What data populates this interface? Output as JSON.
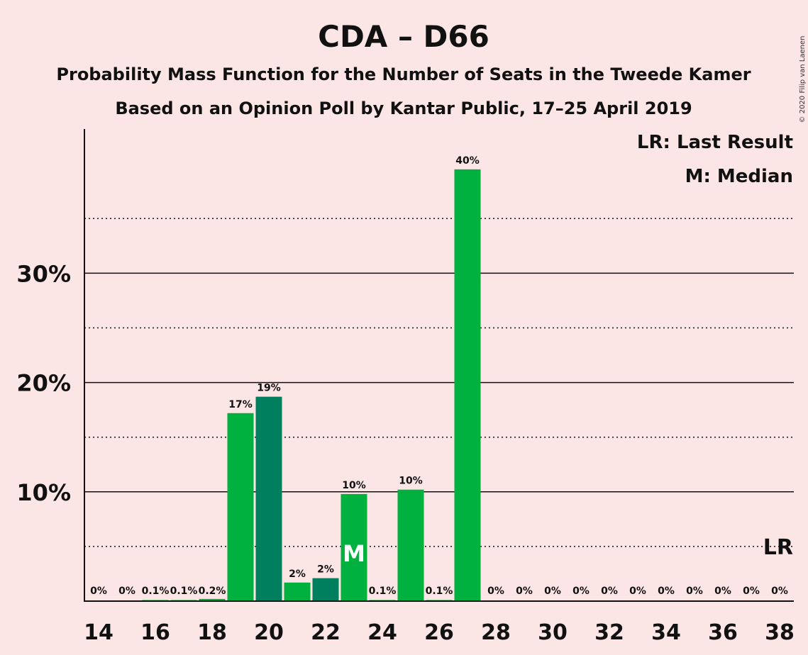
{
  "colors": {
    "background": "#fce5e5",
    "bar": "#00b140",
    "bar_alt": "#007f5f",
    "axis": "#111111"
  },
  "chart_data": {
    "type": "bar",
    "title": "CDA – D66",
    "subtitle_lines": [
      "Probability Mass Function for the Number of Seats in the Tweede Kamer",
      "Based on an Opinion Poll by Kantar Public, 17–25 April 2019"
    ],
    "copyright": "© 2020 Filip van Laenen",
    "legend": [
      {
        "key": "LR",
        "text": "LR: Last Result"
      },
      {
        "key": "M",
        "text": "M: Median"
      }
    ],
    "legend_placement": "top-right",
    "x": [
      14,
      15,
      16,
      17,
      18,
      19,
      20,
      21,
      22,
      23,
      24,
      25,
      26,
      27,
      28,
      29,
      30,
      31,
      32,
      33,
      34,
      35,
      36,
      37,
      38
    ],
    "values": [
      0,
      0,
      0.1,
      0.1,
      0.2,
      17.2,
      18.7,
      1.7,
      2.1,
      9.8,
      0.1,
      10.2,
      0.1,
      39.5,
      0,
      0,
      0,
      0,
      0,
      0,
      0,
      0,
      0,
      0,
      0
    ],
    "data_labels": [
      "0%",
      "0%",
      "0.1%",
      "0.1%",
      "0.2%",
      "17%",
      "19%",
      "2%",
      "2%",
      "10%",
      "0.1%",
      "10%",
      "0.1%",
      "40%",
      "0%",
      "0%",
      "0%",
      "0%",
      "0%",
      "0%",
      "0%",
      "0%",
      "0%",
      "0%",
      "0%"
    ],
    "bar_colors": [
      "bar",
      "bar",
      "bar",
      "bar",
      "bar",
      "bar",
      "bar_alt",
      "bar",
      "bar_alt",
      "bar",
      "bar",
      "bar",
      "bar",
      "bar",
      "bar",
      "bar",
      "bar",
      "bar",
      "bar",
      "bar",
      "bar",
      "bar",
      "bar",
      "bar",
      "bar"
    ],
    "x_tick_labels": [
      "14",
      "16",
      "18",
      "20",
      "22",
      "24",
      "26",
      "28",
      "30",
      "32",
      "34",
      "36",
      "38"
    ],
    "y_ticks": [
      {
        "value": 10,
        "label": "10%"
      },
      {
        "value": 20,
        "label": "20%"
      },
      {
        "value": 30,
        "label": "30%"
      }
    ],
    "y_minor_gridlines": [
      5,
      15,
      25,
      35
    ],
    "ylim": [
      0,
      43
    ],
    "median_seat": 23,
    "median_label": "M",
    "last_result_seat": 38,
    "last_result_label": "LR",
    "grid": true
  }
}
